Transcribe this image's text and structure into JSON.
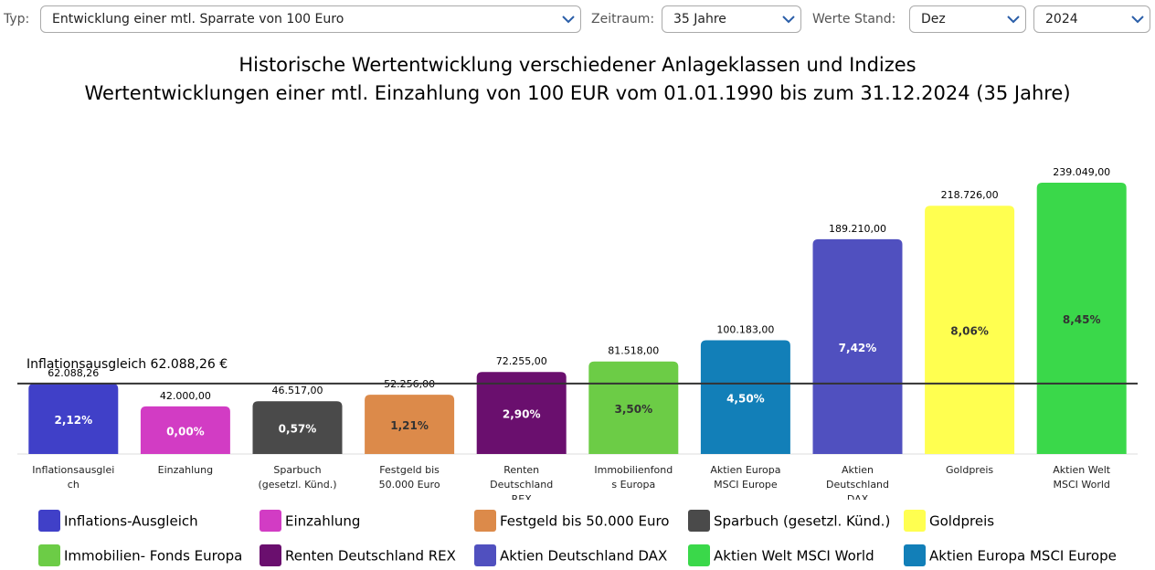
{
  "controls": {
    "type_label": "Typ:",
    "type_value": "Entwicklung einer mtl. Sparrate von 100 Euro",
    "period_label": "Zeitraum:",
    "period_value": "35 Jahre",
    "as_of_label": "Werte Stand:",
    "month_value": "Dez",
    "year_value": "2024"
  },
  "chart_data": {
    "type": "bar",
    "title": "Historische Wertentwicklung verschiedener Anlageklassen und Indizes",
    "subtitle": "Wertentwicklungen einer mtl. Einzahlung von 100 EUR vom 01.01.1990 bis zum 31.12.2024 (35 Jahre)",
    "categories": [
      "Inflationsausgleich",
      "Einzahlung",
      "Sparbuch (gesetzl. Künd.)",
      "Festgeld bis 50.000 Euro",
      "Renten Deutschland REX",
      "Immobilienfonds Europa",
      "Aktien Europa MSCI Europe",
      "Aktien Deutschland DAX",
      "Goldpreis",
      "Aktien Welt MSCI World"
    ],
    "values": [
      62088.26,
      42000,
      46517,
      52256,
      72255,
      81518,
      100183,
      189210,
      218726,
      239049
    ],
    "value_labels": [
      "62.088,26",
      "42.000,00",
      "46.517,00",
      "52.256,00",
      "72.255,00",
      "81.518,00",
      "100.183,00",
      "189.210,00",
      "218.726,00",
      "239.049,00"
    ],
    "rate_labels": [
      "2,12%",
      "0,00%",
      "0,57%",
      "1,21%",
      "2,90%",
      "3,50%",
      "4,50%",
      "7,42%",
      "8,06%",
      "8,45%"
    ],
    "colors": [
      "#4040c8",
      "#d23cc4",
      "#4a4a4a",
      "#dc8a4a",
      "#6a0f6e",
      "#6ccc46",
      "#127fb8",
      "#5050bf",
      "#ffff50",
      "#3ad84a"
    ],
    "reference_line": {
      "value": 62088.26,
      "label": "Inflationsausgleich 62.088,26 €"
    },
    "legend": [
      {
        "name": "Inflations-Ausgleich",
        "color": "#4040c8"
      },
      {
        "name": "Einzahlung",
        "color": "#d23cc4"
      },
      {
        "name": "Festgeld bis 50.000 Euro",
        "color": "#dc8a4a"
      },
      {
        "name": "Sparbuch (gesetzl. Künd.)",
        "color": "#4a4a4a"
      },
      {
        "name": "Goldpreis",
        "color": "#ffff50"
      },
      {
        "name": "Immobilien- Fonds Europa",
        "color": "#6ccc46"
      },
      {
        "name": "Renten Deutschland REX",
        "color": "#6a0f6e"
      },
      {
        "name": "Aktien Deutschland DAX",
        "color": "#5050bf"
      },
      {
        "name": "Aktien Welt MSCI World",
        "color": "#3ad84a"
      },
      {
        "name": "Aktien Europa MSCI Europe",
        "color": "#127fb8"
      }
    ]
  }
}
